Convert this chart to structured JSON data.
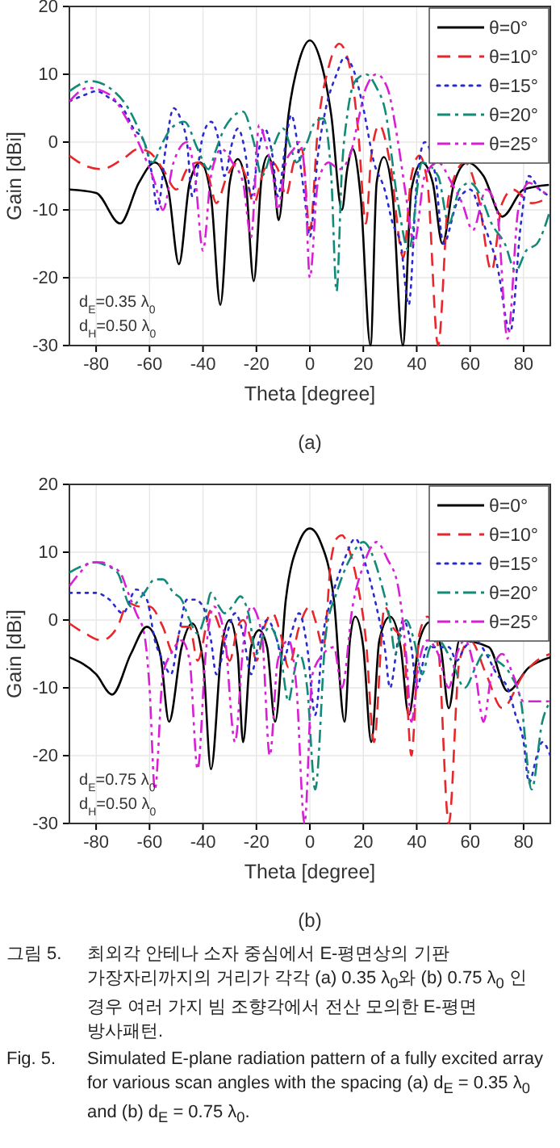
{
  "chart_data": [
    {
      "type": "line",
      "xlabel": "Theta [degree]",
      "ylabel": "Gain [dBi]",
      "xlim": [
        -90,
        90
      ],
      "xticks": [
        -80,
        -60,
        -40,
        -20,
        0,
        20,
        40,
        60,
        80
      ],
      "ylim": [
        -30,
        20
      ],
      "yticks": [
        -30,
        -20,
        -10,
        0,
        10,
        20
      ],
      "grid": true,
      "legend": "top right",
      "annotations": [
        "d$_{E}$=0.35 λ$_{0}$",
        "d$_{H}$=0.50 λ$_{0}$",
        "(a)"
      ],
      "series": [
        {
          "name": "θ=0°",
          "color": "#000000",
          "line_style": "solid",
          "x": [
            -90,
            -80,
            -71,
            -64,
            -58,
            -53,
            -49,
            -45,
            -41,
            -37,
            -33.5,
            -30,
            -27,
            -24,
            -21,
            -18,
            -15.7,
            -13.5,
            -11.7,
            -8,
            -4,
            0,
            4,
            8,
            12,
            14,
            16,
            19,
            22.7,
            25,
            27.7,
            31,
            34.8,
            38,
            42,
            46,
            49.6,
            54,
            59,
            65,
            72,
            80,
            89.5
          ],
          "values": [
            -7,
            -7.5,
            -12,
            -6,
            -3,
            -7,
            -18,
            -6,
            -3,
            -8,
            -24,
            -6,
            -2.5,
            -6,
            -20.5,
            -5,
            -2,
            -5,
            -11.5,
            4,
            12,
            15,
            12,
            4,
            -10,
            -4,
            -1,
            -8,
            -30,
            -6,
            -2.2,
            -8,
            -30,
            -7,
            -3,
            -6,
            -15,
            -6,
            -3,
            -5,
            -11,
            -7,
            -6.3
          ]
        },
        {
          "name": "θ=10°",
          "color": "#e8262b",
          "line_style": "dashed",
          "x": [
            -90,
            -84,
            -78,
            -70,
            -64,
            -60,
            -55,
            -50,
            -46,
            -42,
            -38,
            -35,
            -31,
            -27,
            -24,
            -21,
            -17,
            -14,
            -11,
            -9,
            -6,
            -3,
            0,
            3,
            7,
            11,
            15,
            18,
            21,
            23,
            26,
            30,
            35,
            38,
            41,
            44,
            48,
            52,
            58,
            63,
            68,
            72,
            76,
            83,
            90
          ],
          "values": [
            -2,
            -3.5,
            -4,
            -2.5,
            -1,
            -1.5,
            -4,
            -7,
            -4,
            -3,
            -5,
            -9,
            -5,
            -3,
            -5,
            -9,
            -4,
            -3,
            -5,
            -8,
            -3,
            -1,
            -13,
            2,
            11,
            14.5,
            11,
            2,
            -12,
            -2,
            2.5,
            -3,
            -17,
            -5,
            -2,
            -6,
            -30,
            -8,
            -3,
            -8,
            -19,
            -9,
            -7,
            -9,
            -8
          ]
        },
        {
          "name": "θ=15°",
          "color": "#2a2ad0",
          "line_style": "dotted",
          "x": [
            -90,
            -84,
            -80,
            -75,
            -70,
            -66,
            -62,
            -59,
            -57,
            -54,
            -51,
            -48,
            -46,
            -44,
            -40,
            -37,
            -34,
            -32,
            -29,
            -27,
            -24,
            -22,
            -19,
            -17,
            -14,
            -12,
            -9,
            -7,
            -4,
            -2,
            0,
            3,
            6,
            10,
            13,
            16,
            20,
            24,
            28,
            31,
            34,
            37,
            40,
            43,
            47,
            50,
            55,
            60,
            65,
            70,
            75,
            79,
            82,
            86,
            90
          ],
          "values": [
            6,
            7,
            7.5,
            6.5,
            5,
            2,
            0,
            -5,
            -10,
            -1,
            5,
            3,
            0,
            -8,
            1,
            3,
            0,
            -5,
            0,
            2,
            -2,
            -8,
            -1,
            2,
            -2,
            -8,
            0,
            4,
            -2,
            -8,
            -14,
            -2,
            5,
            10,
            12.5,
            11,
            5,
            -3,
            -7,
            -12,
            -15,
            -24,
            -6,
            0,
            -5,
            -15,
            -9,
            -7,
            -12,
            -18,
            -28,
            -12,
            -5,
            -7,
            -8
          ]
        },
        {
          "name": "θ=20°",
          "color": "#128a78",
          "line_style": "dashdot",
          "x": [
            -90,
            -82,
            -75,
            -68,
            -62,
            -59,
            -55,
            -52,
            -47,
            -42,
            -38,
            -35,
            -32,
            -25,
            -21,
            -18,
            -14,
            -10,
            -7,
            -5,
            -1,
            2,
            5,
            8,
            10,
            12,
            14,
            17,
            21,
            25,
            28,
            33,
            37,
            42,
            48,
            52,
            56,
            60,
            64,
            68,
            73,
            77,
            81,
            85,
            90
          ],
          "values": [
            7.5,
            9,
            8,
            5,
            0,
            -3,
            0,
            2,
            3,
            -1,
            -4,
            -1,
            2,
            4.5,
            0,
            -5,
            -1,
            2,
            -1,
            -3,
            0,
            3,
            3.5,
            -5,
            -22,
            -4,
            4,
            9,
            10,
            8,
            5,
            -9,
            -16,
            -3,
            -5,
            -12,
            -7,
            -6,
            -8,
            -12,
            -15,
            -19,
            -16,
            -15,
            -10
          ]
        },
        {
          "name": "θ=25°",
          "color": "#d81fd6",
          "line_style": "dashdotdot",
          "x": [
            -90,
            -83,
            -75,
            -68,
            -62,
            -58,
            -55,
            -51,
            -46,
            -43,
            -40,
            -37,
            -33,
            -29,
            -25,
            -22,
            -19,
            -16,
            -13,
            -12,
            -9,
            -6,
            -4,
            -2,
            0,
            3,
            7,
            11,
            15,
            18,
            21,
            25,
            29,
            33,
            36,
            39,
            43,
            48,
            53,
            57,
            61,
            66,
            70,
            74,
            78,
            82,
            86,
            90
          ],
          "values": [
            6,
            8,
            7,
            3,
            -2,
            -6,
            -10,
            -3,
            0,
            -5,
            -16,
            -5,
            -1,
            -3,
            -6,
            -14,
            2.5,
            -1,
            -7,
            -10,
            -3,
            -1,
            0,
            -4,
            -20,
            -6,
            -3,
            -4,
            -2,
            3,
            8,
            10,
            8,
            0,
            -8,
            -15,
            -5,
            -3,
            -6,
            -9,
            -13,
            -7,
            -10,
            -29,
            -10,
            -6,
            -7,
            -8
          ]
        }
      ]
    },
    {
      "type": "line",
      "xlabel": "Theta [degree]",
      "ylabel": "Gain [dBi]",
      "xlim": [
        -90,
        90
      ],
      "xticks": [
        -80,
        -60,
        -40,
        -20,
        0,
        20,
        40,
        60,
        80
      ],
      "ylim": [
        -30,
        20
      ],
      "yticks": [
        -30,
        -20,
        -10,
        0,
        10,
        20
      ],
      "grid": true,
      "legend": "top right",
      "annotations": [
        "d$_{E}$=0.75 λ$_{0}$",
        "d$_{H}$=0.50 λ$_{0}$",
        "(b)",
        "그림 5.",
        "최외각 안테나 소자 중심에서 E-평면상의 기판 가장자리까지의 거리가 각각 (a) 0.35 λ$_{0}$와 (b) 0.75 λ$_{0}$ 인 경우 여러 가지 빔 조향각에서 전산 모의한 E-평면 방사패턴.",
        "Fig. 5.",
        "Simulated E-plane radiation pattern of a fully excited array for various scan angles with the spacing (a) d$_{E}$ = 0.35 λ$_{0}$ and (b) d$_{E}$ = 0.75 λ$_{0}$."
      ],
      "series": [
        {
          "name": "θ=0°",
          "color": "#000000",
          "line_style": "solid",
          "x": [
            -90,
            -80,
            -74,
            -67,
            -61,
            -56,
            -52.7,
            -48,
            -44,
            -40,
            -37,
            -33,
            -30,
            -27,
            -25,
            -22,
            -19,
            -16,
            -13,
            -9,
            -4,
            0,
            4,
            9,
            13,
            15,
            17,
            20,
            23,
            26,
            30,
            34,
            37,
            41,
            45,
            49,
            52,
            56,
            60,
            67,
            74,
            82,
            90
          ],
          "values": [
            -5.5,
            -8,
            -11,
            -5,
            -1,
            -5,
            -15,
            -4,
            -0.5,
            -6,
            -22,
            -4,
            0,
            -5,
            -18,
            -4,
            -1.5,
            -4,
            -15,
            3,
            11.5,
            13.5,
            11.5,
            3,
            -15,
            -3,
            0.5,
            -4,
            -18,
            -3,
            0.5,
            -4,
            -14,
            -3,
            -0.3,
            -4,
            -13,
            -3,
            null,
            -4,
            -10.5,
            -7,
            -5.5
          ]
        },
        {
          "name": "θ=10°",
          "color": "#e8262b",
          "line_style": "dashed",
          "x": [
            -90,
            -84,
            -78,
            -72,
            -68,
            -64,
            -60,
            -55,
            -51,
            -48,
            -45,
            -42,
            -37,
            -33,
            -30,
            -27,
            -25,
            -22,
            -20,
            -17,
            -14,
            -11,
            -8,
            -4,
            0,
            2,
            5,
            8,
            10,
            12,
            15,
            18,
            21,
            24,
            28,
            31,
            35,
            38,
            41,
            44,
            48,
            52,
            56,
            60,
            66,
            72,
            80,
            85,
            90
          ],
          "values": [
            -0.5,
            -2,
            -3,
            -1,
            2.5,
            2,
            2,
            -1,
            -5,
            -1,
            -1,
            -6,
            1.5,
            -2,
            -6,
            -1,
            0,
            -3,
            -6,
            -1,
            1,
            -2,
            -7,
            -1,
            2,
            0,
            -4,
            9,
            12,
            12.5,
            10,
            5,
            -3,
            -18,
            2,
            -1,
            -3,
            -20,
            -2,
            0.5,
            -4,
            -30,
            -6,
            -3,
            -8,
            -13,
            -8,
            -6,
            -5
          ]
        },
        {
          "name": "θ=15°",
          "color": "#2a2ad0",
          "line_style": "dotted",
          "x": [
            -90,
            -85,
            -80,
            -75,
            -70,
            -65,
            -61,
            -58,
            -55,
            -52,
            -49,
            -46,
            -43,
            -40,
            -37,
            -35,
            -31,
            -28,
            -25,
            -22,
            -19,
            -16,
            -13,
            -10,
            -7,
            -4,
            -1,
            2,
            5,
            8,
            13,
            17,
            21,
            26,
            28,
            30,
            33,
            35,
            38,
            40,
            44,
            48,
            52,
            55,
            58,
            62,
            66,
            70,
            74,
            77,
            80,
            82,
            85,
            87,
            90
          ],
          "values": [
            4,
            4,
            4,
            3,
            1,
            4.5,
            3,
            -3,
            -6,
            -8,
            -2,
            3,
            3,
            2,
            -3,
            -8,
            -2,
            1,
            -2,
            -8,
            -3,
            0,
            -2,
            -6,
            -2,
            1,
            -4,
            -14,
            -2,
            3,
            9,
            12,
            8,
            0,
            -4,
            -10,
            -3,
            0,
            -4,
            -10,
            -4,
            null,
            -4,
            -6,
            -4,
            -3,
            -5,
            -8,
            -10,
            -14,
            -18,
            -24,
            -20,
            -18,
            -20
          ]
        },
        {
          "name": "θ=20°",
          "color": "#128a78",
          "line_style": "dashdot",
          "x": [
            -90,
            -85,
            -80,
            -76,
            -72,
            -67,
            -62,
            -58,
            -55,
            -51,
            -48,
            -45,
            -42,
            -39,
            -37,
            -34,
            -32,
            -29,
            -26,
            -23,
            -20,
            -17,
            -15,
            -11,
            -8,
            -6,
            -4,
            -1,
            2,
            6,
            10,
            15,
            20,
            24,
            27,
            30,
            32,
            34,
            36,
            39,
            42,
            45,
            48,
            53,
            58,
            62,
            65,
            70,
            75,
            79,
            83,
            87,
            90
          ],
          "values": [
            7,
            8,
            8.5,
            8,
            7,
            2,
            4,
            6,
            6,
            4,
            3,
            0,
            -2,
            1,
            4,
            2,
            1,
            2,
            3.5,
            1,
            -5,
            -2,
            -1,
            -5,
            -12,
            -8,
            -5,
            -10,
            -25,
            -2,
            4,
            9,
            11.5,
            9,
            5,
            0,
            -5,
            -2,
            0,
            -3,
            -8,
            -4,
            -3,
            -6,
            -10,
            -7,
            -5,
            -6,
            -8,
            -12,
            -25,
            -15,
            -12
          ]
        },
        {
          "name": "θ=25°",
          "color": "#d81fd6",
          "line_style": "dashdotdot",
          "x": [
            -90,
            -86,
            -82,
            -78,
            -75,
            -71,
            -68,
            -65,
            -62,
            -60,
            -58,
            -55,
            -52,
            -48,
            -45,
            -42,
            -39,
            -36,
            -32,
            -28,
            -25,
            -22,
            -18,
            -15,
            -12,
            -8,
            -5,
            -2,
            1,
            5,
            9,
            12,
            16,
            20,
            25,
            29,
            33,
            36,
            38,
            41,
            44,
            48,
            52,
            55,
            58,
            62,
            65,
            68,
            72,
            76,
            80,
            85,
            90
          ],
          "values": [
            5,
            7,
            8.5,
            8.5,
            8,
            7,
            4,
            1,
            -2,
            -10,
            -25,
            -8,
            -5,
            -3,
            -6,
            -22,
            -5,
            2,
            -2,
            -18,
            -4,
            2,
            -2,
            -20,
            -6,
            -3,
            -10,
            -30,
            -8,
            -5,
            -4,
            -10,
            2,
            8,
            11.5,
            9,
            5,
            -5,
            -15,
            -6,
            -3,
            -5,
            -10,
            -5,
            -3,
            -8,
            -15,
            -8,
            -5,
            -8,
            -12,
            -12,
            -12
          ]
        }
      ]
    }
  ]
}
